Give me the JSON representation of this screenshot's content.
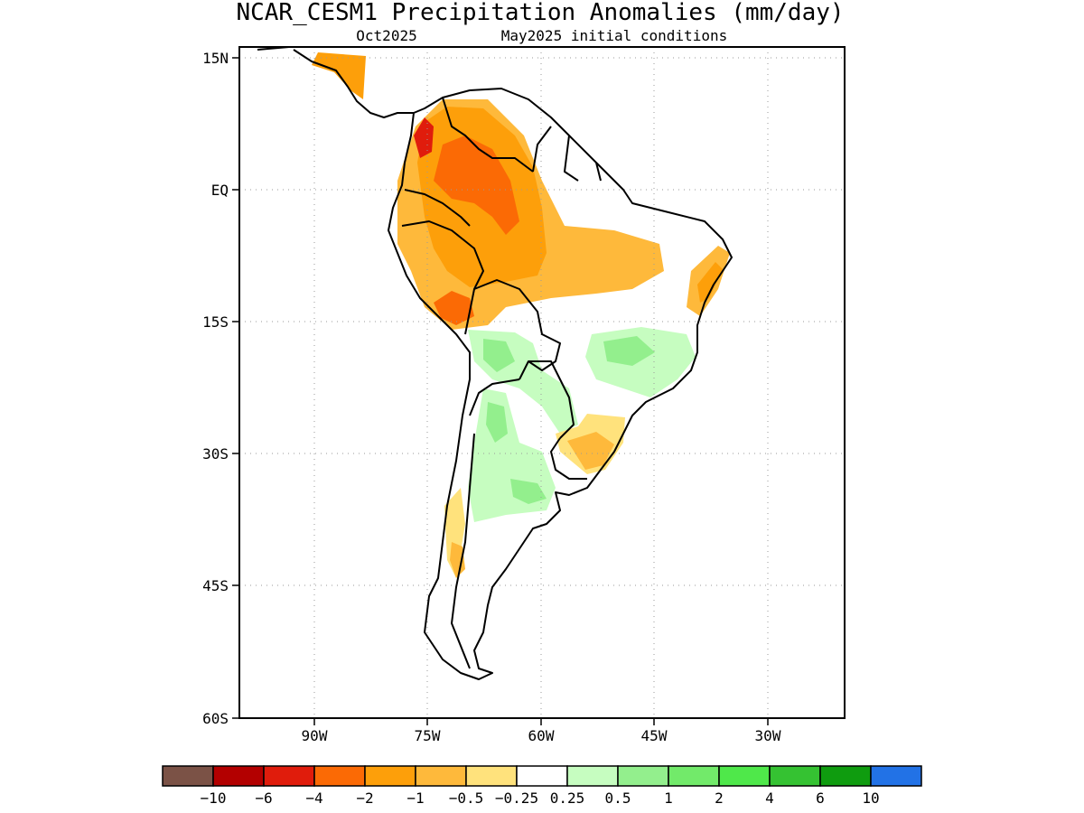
{
  "title": "NCAR_CESM1 Precipitation Anomalies (mm/day)",
  "subtitle_left": "Oct2025",
  "subtitle_right": "May2025 initial conditions",
  "lat_labels": [
    "15N",
    "EQ",
    "15S",
    "30S",
    "45S",
    "60S"
  ],
  "lon_labels": [
    "90W",
    "75W",
    "60W",
    "45W",
    "30W"
  ],
  "colorbar": {
    "labels": [
      "-10",
      "-6",
      "-4",
      "-2",
      "-1",
      "-0.5",
      "-0.25",
      "0.25",
      "0.5",
      "1",
      "2",
      "4",
      "6",
      "10"
    ],
    "colors": [
      "#7b5246",
      "#b30000",
      "#e01c0c",
      "#fb6a05",
      "#fd9f0a",
      "#feb93b",
      "#ffe27c",
      "#ffffff",
      "#c6fdc0",
      "#93ef8d",
      "#72ea6a",
      "#4fe84a",
      "#35c232",
      "#0f9c0f",
      "#2272e6"
    ]
  }
}
